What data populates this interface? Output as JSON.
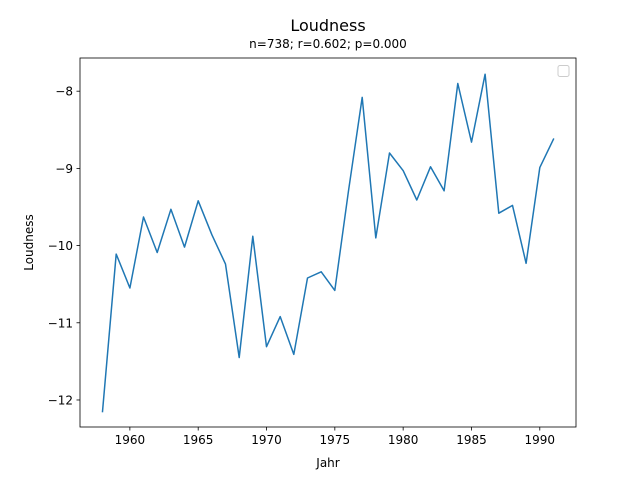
{
  "chart_data": {
    "type": "line",
    "title": "Loudness",
    "subtitle": "n=738; r=0.602; p=0.000",
    "xlabel": "Jahr",
    "ylabel": "Loudness",
    "xlim": [
      1956.35,
      1992.65
    ],
    "ylim": [
      -12.35,
      -7.57
    ],
    "xticks": [
      1960,
      1965,
      1970,
      1975,
      1980,
      1985,
      1990
    ],
    "yticks": [
      -12,
      -11,
      -10,
      -9,
      -8
    ],
    "xtick_labels": [
      "1960",
      "1965",
      "1970",
      "1975",
      "1980",
      "1985",
      "1990"
    ],
    "ytick_labels": [
      "−12",
      "−11",
      "−10",
      "−9",
      "−8"
    ],
    "legend": "top-right (empty)",
    "grid": false,
    "series": [
      {
        "name": "Loudness",
        "color": "#1f77b4",
        "x": [
          1958,
          1959,
          1960,
          1961,
          1962,
          1963,
          1964,
          1965,
          1966,
          1967,
          1968,
          1969,
          1970,
          1971,
          1972,
          1973,
          1974,
          1975,
          1976,
          1977,
          1978,
          1979,
          1980,
          1981,
          1982,
          1983,
          1984,
          1985,
          1986,
          1987,
          1988,
          1989,
          1990,
          1991
        ],
        "y": [
          -12.15,
          -10.11,
          -10.55,
          -9.63,
          -10.09,
          -9.53,
          -10.02,
          -9.42,
          -9.86,
          -10.24,
          -11.45,
          -9.88,
          -11.31,
          -10.92,
          -11.41,
          -10.42,
          -10.34,
          -10.58,
          -9.29,
          -8.08,
          -9.9,
          -8.8,
          -9.03,
          -9.41,
          -8.98,
          -9.29,
          -7.9,
          -8.66,
          -7.78,
          -9.58,
          -9.48,
          -10.23,
          -8.99,
          -8.62
        ]
      }
    ]
  }
}
